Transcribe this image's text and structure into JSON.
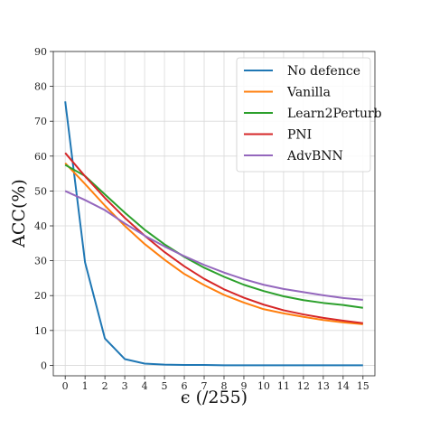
{
  "chart_data": {
    "type": "line",
    "xlabel": "ϵ (/255)",
    "ylabel": "ACC(%)",
    "x": [
      0,
      1,
      2,
      3,
      4,
      5,
      6,
      7,
      8,
      9,
      10,
      11,
      12,
      13,
      14,
      15
    ],
    "xlim": [
      -0.6,
      15.6
    ],
    "ylim": [
      -3,
      90
    ],
    "yticks": [
      0,
      10,
      20,
      30,
      40,
      50,
      60,
      70,
      80,
      90
    ],
    "grid": true,
    "legend_position": "top-right",
    "series": [
      {
        "name": "No defence",
        "color": "#1f77b4",
        "values": [
          75.7,
          29.5,
          7.7,
          1.8,
          0.5,
          0.2,
          0.1,
          0.1,
          0.0,
          0.0,
          0.0,
          0.0,
          0.0,
          0.0,
          0.0,
          0.0
        ]
      },
      {
        "name": "Vanilla",
        "color": "#ff7f0e",
        "values": [
          58,
          52,
          45.8,
          40,
          34.8,
          30.3,
          26.2,
          23,
          20.2,
          18,
          16.1,
          14.9,
          13.9,
          13,
          12.3,
          11.8
        ]
      },
      {
        "name": "Learn2Perturb",
        "color": "#2ca02c",
        "values": [
          57.5,
          54.3,
          49,
          43.8,
          38.9,
          34.7,
          31.1,
          28,
          25.4,
          23.1,
          21.3,
          19.8,
          18.7,
          17.9,
          17.3,
          16.5
        ]
      },
      {
        "name": "PNI",
        "color": "#d62728",
        "values": [
          60.9,
          54.2,
          48,
          42.3,
          37.2,
          32.5,
          28.4,
          24.8,
          21.8,
          19.4,
          17.4,
          15.8,
          14.6,
          13.6,
          12.8,
          12.1
        ]
      },
      {
        "name": "AdvBNN",
        "color": "#9467bd",
        "values": [
          50,
          47.4,
          44.5,
          40.7,
          37.2,
          34.1,
          31.3,
          28.8,
          26.6,
          24.7,
          23.1,
          21.9,
          21,
          20.1,
          19.3,
          18.8
        ]
      }
    ]
  }
}
